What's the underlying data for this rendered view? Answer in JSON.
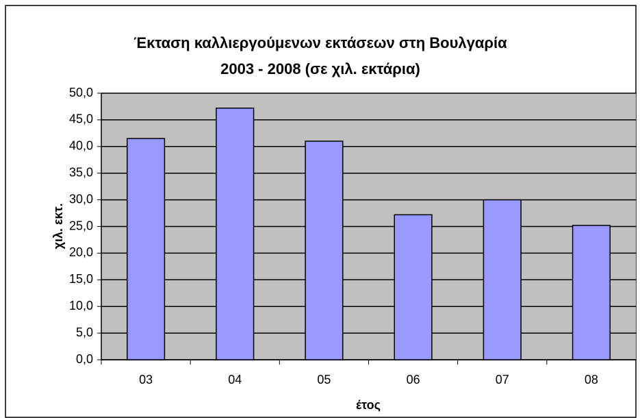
{
  "chart_data": {
    "type": "bar",
    "title": [
      "Έκταση καλλιεργούμενων εκτάσεων στη Βουλγαρία",
      "2003 - 2008 (σε χιλ. εκτάρια)"
    ],
    "x_label": "έτος",
    "y_label": "χιλ. εκτ.",
    "categories": [
      "03",
      "04",
      "05",
      "06",
      "07",
      "08"
    ],
    "values": [
      41.5,
      47.2,
      41.0,
      27.2,
      30.0,
      25.2
    ],
    "color": "#9999ff",
    "ylim": [
      0,
      50
    ],
    "yticks": [
      {
        "value": 0,
        "label": "0,0"
      },
      {
        "value": 5,
        "label": "5,0"
      },
      {
        "value": 10,
        "label": "10,0"
      },
      {
        "value": 15,
        "label": "15,0"
      },
      {
        "value": 20,
        "label": "20,0"
      },
      {
        "value": 25,
        "label": "25,0"
      },
      {
        "value": 30,
        "label": "30,0"
      },
      {
        "value": 35,
        "label": "35,0"
      },
      {
        "value": 40,
        "label": "40,0"
      },
      {
        "value": 45,
        "label": "45,0"
      },
      {
        "value": 50,
        "label": "50,0"
      }
    ],
    "grid": true
  }
}
